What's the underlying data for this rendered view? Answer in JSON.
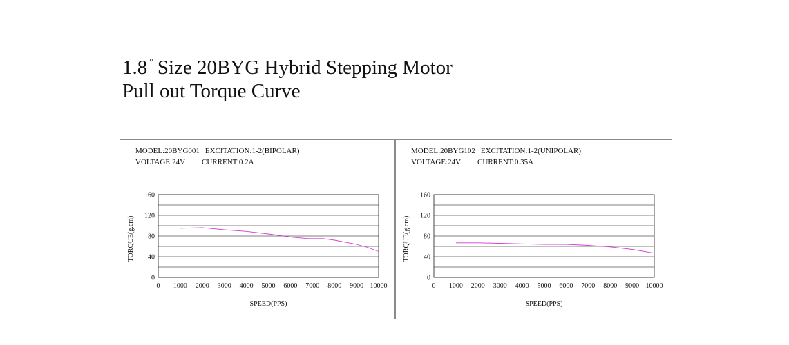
{
  "title": {
    "line1_prefix": "1.8",
    "degree_mark": "°",
    "line1_rest": "Size 20BYG Hybrid Stepping Motor",
    "line2": "Pull out Torque Curve"
  },
  "colors": {
    "curve": "#d23fd2",
    "grid": "#555555",
    "border": "#8a8a8a"
  },
  "chart_data": [
    {
      "type": "line",
      "model": "MODEL:20BYG001",
      "excitation": "EXCITATION:1-2(BIPOLAR)",
      "voltage": "VOLTAGE:24V",
      "current": "CURRENT:0.2A",
      "xlabel": "SPEED(PPS)",
      "ylabel": "TORQUE(g.cm)",
      "xlim": [
        0,
        10000
      ],
      "ylim": [
        0,
        160
      ],
      "xticks": [
        0,
        1000,
        2000,
        3000,
        4000,
        5000,
        6000,
        7000,
        8000,
        9000,
        10000
      ],
      "yticks": [
        0,
        40,
        80,
        120,
        160
      ],
      "grid": true,
      "series": [
        {
          "x": [
            1000,
            2000,
            2300,
            3000,
            4000,
            5000,
            6000,
            6800,
            7500,
            8000,
            9000,
            9500,
            10000
          ],
          "y": [
            95,
            96,
            95,
            92,
            89,
            84,
            78,
            75,
            75,
            72,
            64,
            58,
            50
          ]
        }
      ]
    },
    {
      "type": "line",
      "model": "MODEL:20BYG102",
      "excitation": "EXCITATION:1-2(UNIPOLAR)",
      "voltage": "VOLTAGE:24V",
      "current": "CURRENT:0.35A",
      "xlabel": "SPEED(PPS)",
      "ylabel": "TORQUE(g.cm)",
      "xlim": [
        0,
        10000
      ],
      "ylim": [
        0,
        160
      ],
      "xticks": [
        0,
        1000,
        2000,
        3000,
        4000,
        5000,
        6000,
        7000,
        8000,
        9000,
        10000
      ],
      "yticks": [
        0,
        40,
        80,
        120,
        160
      ],
      "grid": true,
      "series": [
        {
          "x": [
            1000,
            2000,
            3000,
            4000,
            5000,
            6000,
            7000,
            8000,
            9000,
            10000
          ],
          "y": [
            67,
            67,
            66,
            65,
            64,
            64,
            62,
            59,
            54,
            47
          ]
        }
      ]
    }
  ]
}
